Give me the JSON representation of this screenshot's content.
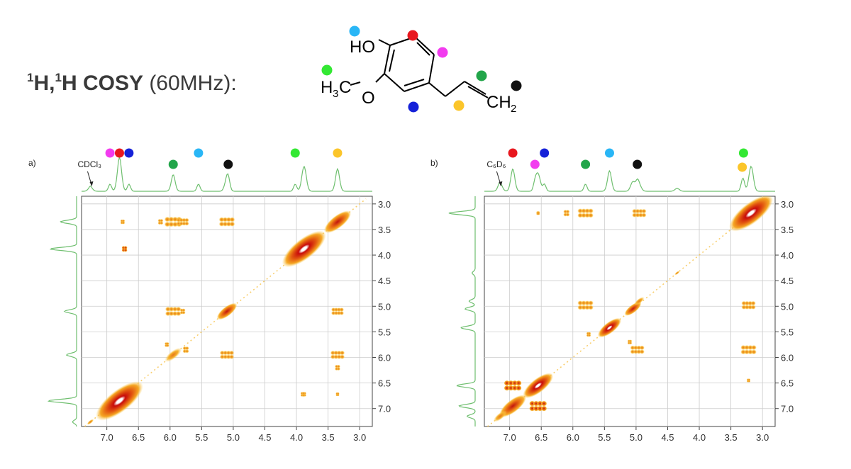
{
  "title": {
    "sup1": "1",
    "h1": "H,",
    "sup2": "1",
    "h2": "H COSY",
    "rest": "(60MHz):"
  },
  "molecule": {
    "ho": "HO",
    "h3c_h": "H",
    "h3c_sub": "3",
    "h3c_c": "C",
    "o": "O",
    "ch2_ch": "CH",
    "ch2_sub": "2"
  },
  "colors": {
    "cyan": "#29b6f6",
    "red": "#e8171e",
    "magenta": "#f23bef",
    "green": "#22a54a",
    "black": "#111111",
    "yellow": "#fbc52a",
    "blue": "#1521d8",
    "lime": "#33e833",
    "trace": "#6fbf6f",
    "grid": "#cccccc"
  },
  "chart_data": [
    {
      "type": "heatmap",
      "panel": "a)",
      "solvent_label": "CDCl₃",
      "solvent_ppm": 7.26,
      "xlim": [
        7.4,
        2.8
      ],
      "ylim": [
        2.85,
        7.35
      ],
      "x_ticks": [
        "7.0",
        "6.5",
        "6.0",
        "5.5",
        "5.0",
        "4.5",
        "4.0",
        "3.5",
        "3.0"
      ],
      "y_ticks": [
        "3.0",
        "3.5",
        "4.0",
        "4.5",
        "5.0",
        "5.5",
        "6.0",
        "6.5",
        "7.0"
      ],
      "dot_markers": [
        {
          "color": "magenta",
          "ppm": 6.95
        },
        {
          "color": "red",
          "ppm": 6.8
        },
        {
          "color": "blue",
          "ppm": 6.65
        },
        {
          "color": "green",
          "ppm": 5.95
        },
        {
          "color": "cyan",
          "ppm": 5.55
        },
        {
          "color": "black",
          "ppm": 5.08
        },
        {
          "color": "lime",
          "ppm": 4.02
        },
        {
          "color": "yellow",
          "ppm": 3.35
        }
      ],
      "peaks": [
        {
          "x": 6.8,
          "y": 6.85,
          "r": 28,
          "s": 3
        },
        {
          "x": 3.88,
          "y": 3.88,
          "r": 26,
          "s": 3
        },
        {
          "x": 3.35,
          "y": 3.35,
          "r": 16,
          "s": 2
        },
        {
          "x": 5.95,
          "y": 5.95,
          "r": 10,
          "s": 1
        },
        {
          "x": 5.1,
          "y": 5.1,
          "r": 12,
          "s": 2
        },
        {
          "x": 7.26,
          "y": 7.26,
          "r": 4,
          "s": 1
        },
        {
          "x": 6.72,
          "y": 3.88,
          "r": 5,
          "s": 2
        },
        {
          "x": 3.88,
          "y": 6.72,
          "r": 4,
          "s": 1
        },
        {
          "x": 6.75,
          "y": 3.35,
          "r": 4,
          "s": 1
        },
        {
          "x": 5.95,
          "y": 3.35,
          "r": 10,
          "s": 1
        },
        {
          "x": 5.8,
          "y": 3.35,
          "r": 7,
          "s": 1
        },
        {
          "x": 6.15,
          "y": 3.35,
          "r": 5,
          "s": 1
        },
        {
          "x": 5.1,
          "y": 3.35,
          "r": 9,
          "s": 1
        },
        {
          "x": 5.95,
          "y": 5.1,
          "r": 9,
          "s": 1
        },
        {
          "x": 5.8,
          "y": 5.1,
          "r": 5,
          "s": 1
        },
        {
          "x": 3.35,
          "y": 5.1,
          "r": 7,
          "s": 1
        },
        {
          "x": 5.1,
          "y": 5.95,
          "r": 8,
          "s": 1
        },
        {
          "x": 3.35,
          "y": 5.95,
          "r": 8,
          "s": 1
        },
        {
          "x": 3.35,
          "y": 6.2,
          "r": 5,
          "s": 1
        },
        {
          "x": 5.75,
          "y": 5.85,
          "r": 6,
          "s": 1
        },
        {
          "x": 6.05,
          "y": 5.75,
          "r": 4,
          "s": 1
        },
        {
          "x": 3.9,
          "y": 6.72,
          "r": 4,
          "s": 1
        },
        {
          "x": 3.35,
          "y": 6.72,
          "r": 3,
          "s": 1
        }
      ]
    },
    {
      "type": "heatmap",
      "panel": "b)",
      "solvent_label": "C₆D₆",
      "solvent_ppm": 7.16,
      "xlim": [
        7.4,
        2.8
      ],
      "ylim": [
        2.85,
        7.35
      ],
      "x_ticks": [
        "7.0",
        "6.5",
        "6.0",
        "5.5",
        "5.0",
        "4.5",
        "4.0",
        "3.5",
        "3.0"
      ],
      "y_ticks": [
        "3.0",
        "3.5",
        "4.0",
        "4.5",
        "5.0",
        "5.5",
        "6.0",
        "6.5",
        "7.0"
      ],
      "dot_markers": [
        {
          "color": "red",
          "ppm": 6.95
        },
        {
          "color": "magenta",
          "ppm": 6.6
        },
        {
          "color": "blue",
          "ppm": 6.45
        },
        {
          "color": "green",
          "ppm": 5.8
        },
        {
          "color": "cyan",
          "ppm": 5.42
        },
        {
          "color": "black",
          "ppm": 4.98
        },
        {
          "color": "lime",
          "ppm": 3.3
        },
        {
          "color": "yellow",
          "ppm": 3.32
        }
      ],
      "peaks": [
        {
          "x": 3.18,
          "y": 3.18,
          "r": 26,
          "s": 3
        },
        {
          "x": 5.42,
          "y": 5.42,
          "r": 14,
          "s": 3
        },
        {
          "x": 6.95,
          "y": 6.95,
          "r": 16,
          "s": 2
        },
        {
          "x": 6.55,
          "y": 6.55,
          "r": 18,
          "s": 3
        },
        {
          "x": 7.15,
          "y": 7.15,
          "r": 8,
          "s": 1
        },
        {
          "x": 5.05,
          "y": 5.05,
          "r": 10,
          "s": 2
        },
        {
          "x": 4.35,
          "y": 4.35,
          "r": 3,
          "s": 1
        },
        {
          "x": 6.95,
          "y": 6.55,
          "r": 10,
          "s": 2
        },
        {
          "x": 6.55,
          "y": 6.95,
          "r": 10,
          "s": 2
        },
        {
          "x": 5.8,
          "y": 3.18,
          "r": 9,
          "s": 1
        },
        {
          "x": 6.1,
          "y": 3.18,
          "r": 6,
          "s": 1
        },
        {
          "x": 6.55,
          "y": 3.18,
          "r": 3,
          "s": 1
        },
        {
          "x": 4.95,
          "y": 3.18,
          "r": 8,
          "s": 1
        },
        {
          "x": 5.8,
          "y": 4.98,
          "r": 9,
          "s": 1
        },
        {
          "x": 4.95,
          "y": 4.9,
          "r": 6,
          "s": 1
        },
        {
          "x": 3.22,
          "y": 4.98,
          "r": 8,
          "s": 1
        },
        {
          "x": 3.22,
          "y": 5.85,
          "r": 9,
          "s": 1
        },
        {
          "x": 3.22,
          "y": 6.45,
          "r": 3,
          "s": 1
        },
        {
          "x": 4.98,
          "y": 5.85,
          "r": 8,
          "s": 1
        },
        {
          "x": 5.1,
          "y": 5.7,
          "r": 4,
          "s": 1
        },
        {
          "x": 5.75,
          "y": 5.55,
          "r": 4,
          "s": 1
        }
      ]
    }
  ]
}
